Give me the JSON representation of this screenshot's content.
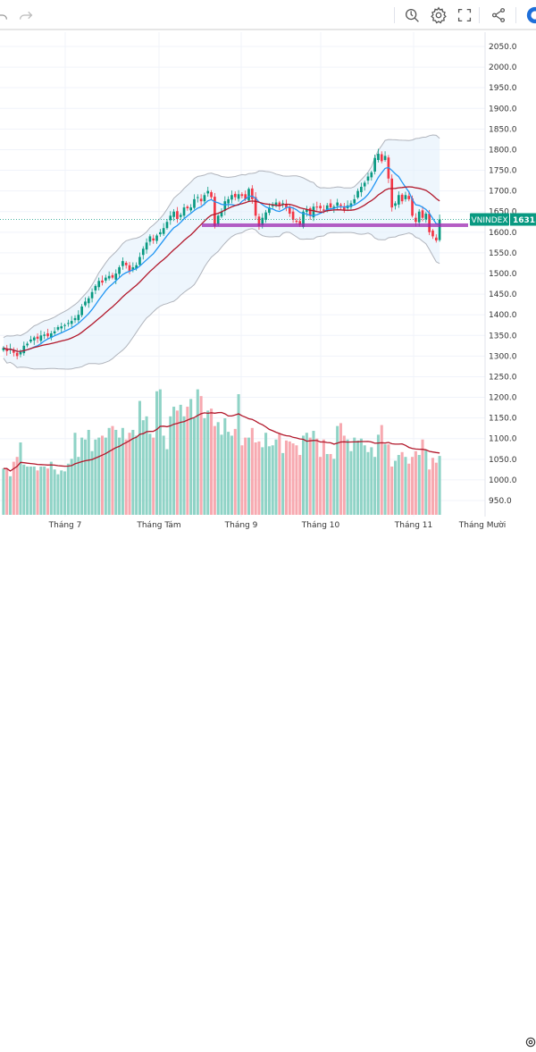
{
  "toolbar": {
    "icons": [
      "undo-icon",
      "redo-icon",
      "snapshot-search-icon",
      "settings-icon",
      "fullscreen-icon",
      "share-icon",
      "logo-icon"
    ]
  },
  "symbol": {
    "name": "VNINDEX",
    "last_price_label": "1631.",
    "badge_color": "#089981"
  },
  "colors": {
    "up": "#089981",
    "down": "#f23645",
    "vol_up": "#8fd3c6",
    "vol_down": "#f7a9b0",
    "bb_basis": "#2962ff",
    "ma_red": "#b2182b",
    "band_fill": "#e3f0fb",
    "support_line": "#9c27b0"
  },
  "chart_data": {
    "type": "candlestick",
    "title": "VNINDEX",
    "y_axis": {
      "range": [
        950,
        2050
      ],
      "ticks": [
        "2050.0",
        "2000.0",
        "1950.0",
        "1900.0",
        "1850.0",
        "1800.0",
        "1750.0",
        "1700.0",
        "1650.0",
        "1600.0",
        "1550.0",
        "1500.0",
        "1450.0",
        "1400.0",
        "1350.0",
        "1300.0",
        "1250.0",
        "1200.0",
        "1150.0",
        "1100.0",
        "1050.0",
        "1000.0",
        "950.0"
      ]
    },
    "x_axis": {
      "tick_labels": [
        "Tháng 7",
        "Tháng Tám",
        "Tháng 9",
        "Tháng 10",
        "Tháng 11",
        "Tháng Mười"
      ]
    },
    "support_level": 1617,
    "last_price": 1631,
    "closes": [
      1320,
      1312,
      1318,
      1308,
      1300,
      1310,
      1325,
      1330,
      1340,
      1345,
      1342,
      1350,
      1352,
      1348,
      1355,
      1360,
      1370,
      1372,
      1375,
      1380,
      1385,
      1392,
      1400,
      1420,
      1432,
      1440,
      1455,
      1470,
      1482,
      1478,
      1490,
      1494,
      1490,
      1500,
      1515,
      1530,
      1520,
      1505,
      1515,
      1520,
      1540,
      1560,
      1575,
      1590,
      1580,
      1592,
      1600,
      1610,
      1625,
      1640,
      1650,
      1632,
      1642,
      1660,
      1658,
      1660,
      1680,
      1685,
      1675,
      1690,
      1700,
      1685,
      1615,
      1640,
      1650,
      1675,
      1680,
      1690,
      1685,
      1692,
      1688,
      1680,
      1705,
      1680,
      1640,
      1615,
      1635,
      1648,
      1660,
      1668,
      1672,
      1665,
      1670,
      1660,
      1645,
      1630,
      1625,
      1618,
      1650,
      1655,
      1640,
      1662,
      1660,
      1658,
      1652,
      1665,
      1660,
      1662,
      1672,
      1664,
      1655,
      1665,
      1670,
      1680,
      1700,
      1710,
      1720,
      1735,
      1745,
      1780,
      1790,
      1772,
      1785,
      1730,
      1660,
      1670,
      1690,
      1675,
      1690,
      1680,
      1640,
      1625,
      1650,
      1635,
      1645,
      1600,
      1590,
      1580,
      1631
    ],
    "volume": {
      "values": [
        48,
        48,
        40,
        55,
        60,
        75,
        52,
        50,
        50,
        50,
        46,
        50,
        50,
        48,
        55,
        47,
        42,
        46,
        45,
        53,
        58,
        85,
        60,
        80,
        78,
        88,
        66,
        78,
        80,
        82,
        80,
        90,
        92,
        88,
        80,
        90,
        78,
        85,
        88,
        82,
        118,
        98,
        102,
        84,
        80,
        128,
        130,
        82,
        68,
        102,
        112,
        108,
        114,
        102,
        112,
        120,
        100,
        130,
        123,
        100,
        108,
        110,
        92,
        96,
        83,
        100,
        86,
        82,
        89,
        125,
        72,
        80,
        80,
        90,
        75,
        76,
        70,
        85,
        71,
        72,
        78,
        84,
        64,
        77,
        76,
        74,
        72,
        62,
        82,
        85,
        80,
        87,
        79,
        60,
        78,
        63,
        63,
        58,
        92,
        95,
        82,
        78,
        66,
        80,
        77,
        79,
        72,
        65,
        70,
        60,
        83,
        93,
        73,
        73,
        50,
        56,
        62,
        65,
        60,
        53,
        60,
        66,
        62,
        78,
        67,
        47,
        59,
        54,
        61
      ],
      "ma_color": "#b2182b"
    }
  }
}
